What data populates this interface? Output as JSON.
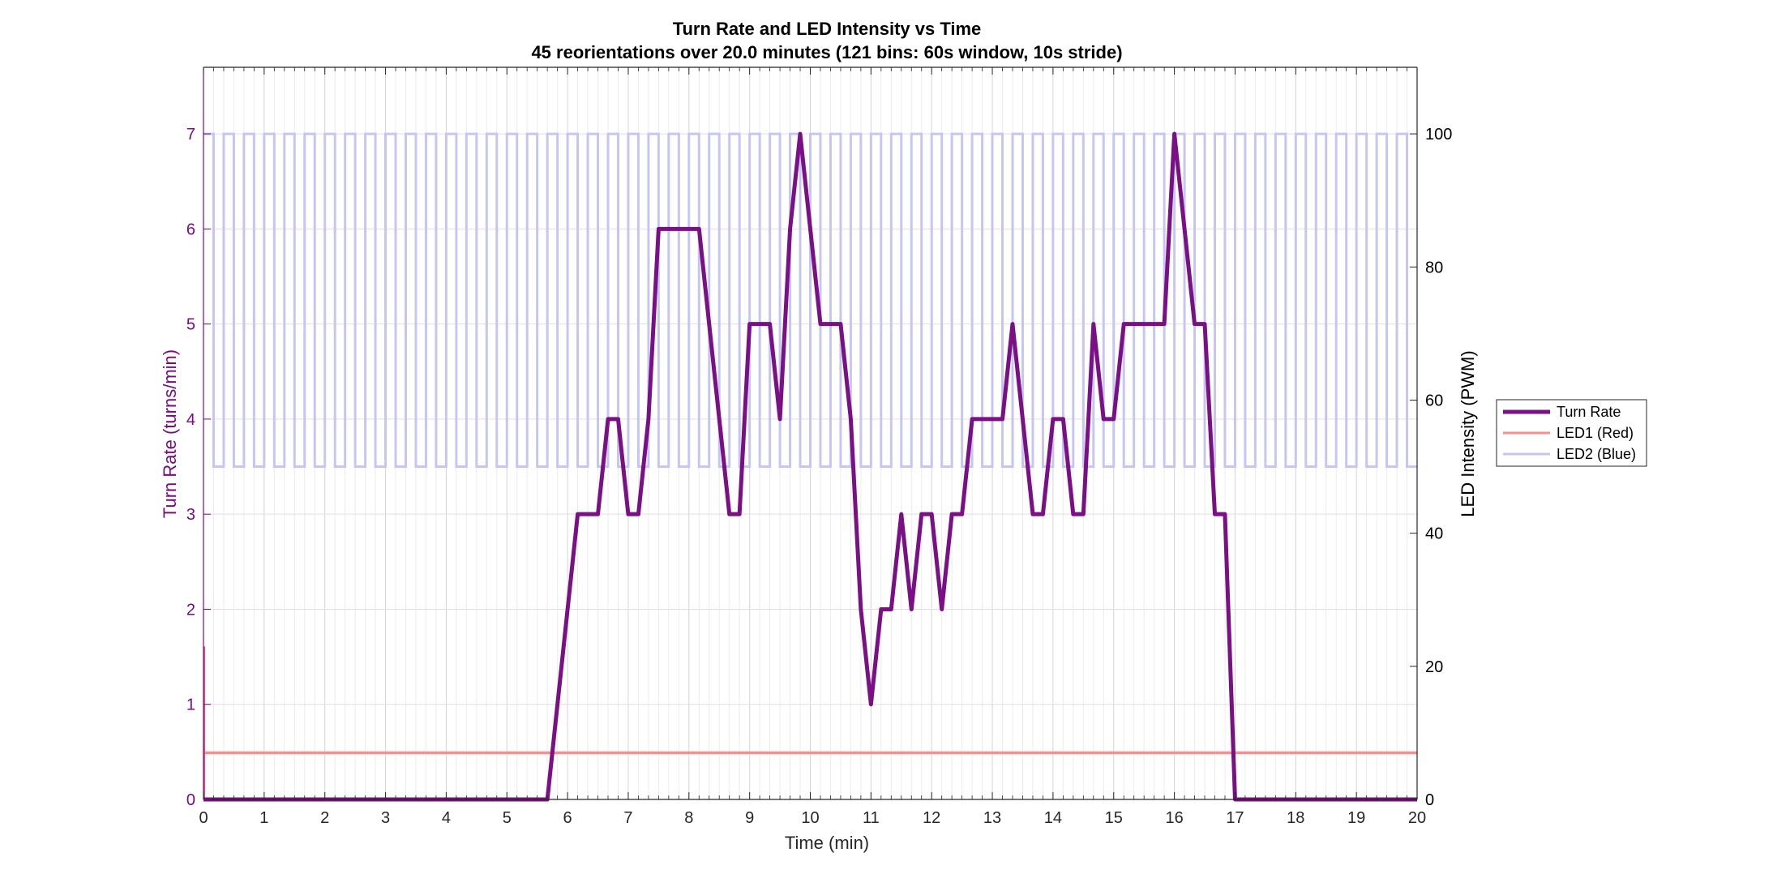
{
  "chart_data": {
    "type": "line",
    "title": "Turn Rate and LED Intensity vs Time",
    "subtitle": "45 reorientations over 20.0 minutes (121 bins: 60s window, 10s stride)",
    "xlabel": "Time (min)",
    "ylabel_left": "Turn Rate (turns/min)",
    "ylabel_right": "LED Intensity (PWM)",
    "xlim": [
      0,
      20
    ],
    "ylim_left": [
      0,
      7.7
    ],
    "ylim_right": [
      0,
      110
    ],
    "xticks": [
      0,
      1,
      2,
      3,
      4,
      5,
      6,
      7,
      8,
      9,
      10,
      11,
      12,
      13,
      14,
      15,
      16,
      17,
      18,
      19,
      20
    ],
    "yticks_left": [
      0,
      1,
      2,
      3,
      4,
      5,
      6,
      7
    ],
    "yticks_right": [
      0,
      20,
      40,
      60,
      80,
      100
    ],
    "grid": true,
    "legend_position": "outside-right",
    "colors": {
      "turn_rate": "#7b0f85",
      "led1": "#ff8c8c",
      "led2": "#c6c6f5",
      "left_axis": "#7a0a82"
    },
    "series": [
      {
        "name": "Turn Rate",
        "axis": "left",
        "x": [
          0,
          5.667,
          6.167,
          6.333,
          6.5,
          6.667,
          6.833,
          7.0,
          7.167,
          7.333,
          7.5,
          7.667,
          7.833,
          8.0,
          8.167,
          8.333,
          8.5,
          8.667,
          8.833,
          9.0,
          9.167,
          9.333,
          9.5,
          9.667,
          9.833,
          10.0,
          10.167,
          10.333,
          10.5,
          10.667,
          10.833,
          11.0,
          11.167,
          11.333,
          11.5,
          11.667,
          11.833,
          12.0,
          12.167,
          12.333,
          12.5,
          12.667,
          12.833,
          13.0,
          13.167,
          13.333,
          13.5,
          13.667,
          13.833,
          14.0,
          14.167,
          14.333,
          14.5,
          14.667,
          14.833,
          15.0,
          15.167,
          15.333,
          15.5,
          15.667,
          15.833,
          16.0,
          16.167,
          16.333,
          16.5,
          16.667,
          16.833,
          17.0,
          20
        ],
        "values": [
          0,
          0,
          3,
          3,
          3,
          4,
          4,
          3,
          3,
          4,
          6,
          6,
          6,
          6,
          6,
          5,
          4,
          3,
          3,
          5,
          5,
          5,
          4,
          6,
          7,
          6,
          5,
          5,
          5,
          4,
          2,
          1,
          2,
          2,
          3,
          2,
          3,
          3,
          2,
          3,
          3,
          4,
          4,
          4,
          4,
          5,
          4,
          3,
          3,
          4,
          4,
          3,
          3,
          5,
          4,
          4,
          5,
          5,
          5,
          5,
          5,
          7,
          6,
          5,
          5,
          3,
          3,
          0,
          0
        ]
      },
      {
        "name": "LED1 (Red)",
        "axis": "right",
        "constant": 7
      },
      {
        "name": "LED2 (Blue)",
        "axis": "right",
        "square_wave": {
          "low": 50,
          "high": 100,
          "period_s": 20,
          "start": 0,
          "end": 20
        }
      }
    ]
  }
}
